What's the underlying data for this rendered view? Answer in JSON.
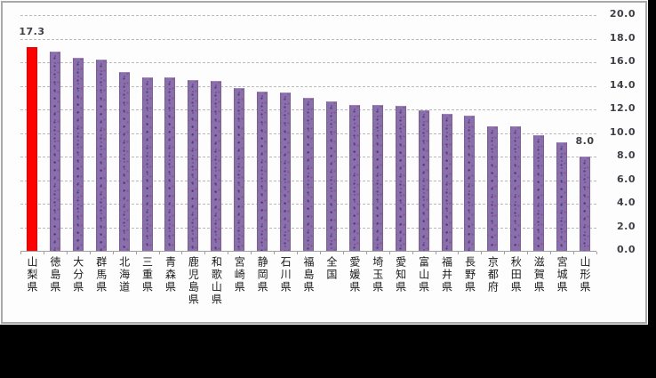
{
  "chart_data": {
    "type": "bar",
    "title": "",
    "xlabel": "",
    "ylabel": "",
    "categories": [
      "山梨県",
      "徳島県",
      "大分県",
      "群馬県",
      "北海道",
      "三重県",
      "青森県",
      "鹿児島県",
      "和歌山県",
      "宮崎県",
      "静岡県",
      "石川県",
      "福島県",
      "全国",
      "愛媛県",
      "埼玉県",
      "愛知県",
      "富山県",
      "福井県",
      "長野県",
      "京都府",
      "秋田県",
      "滋賀県",
      "宮城県",
      "山形県"
    ],
    "values": [
      17.3,
      16.9,
      16.4,
      16.2,
      15.2,
      14.7,
      14.7,
      14.5,
      14.4,
      13.8,
      13.5,
      13.4,
      13.0,
      12.7,
      12.4,
      12.4,
      12.3,
      11.9,
      11.6,
      11.5,
      10.6,
      10.6,
      9.8,
      9.2,
      8.0
    ],
    "highlight_index": 0,
    "data_labels": [
      {
        "index": 0,
        "text": "17.3"
      },
      {
        "index": 24,
        "text": "8.0"
      }
    ],
    "ylim": [
      0,
      20
    ],
    "ytick_step": 2,
    "ytick_labels": [
      "0.0",
      "2.0",
      "4.0",
      "6.0",
      "8.0",
      "10.0",
      "12.0",
      "14.0",
      "16.0",
      "18.0",
      "20.0"
    ],
    "yaxis_side": "right",
    "grid": "dashed-horizontal",
    "legend": "none"
  },
  "colors": {
    "background_outer": "#000000",
    "panel_background": "#fdfdfe",
    "panel_border": "#a9a9a9",
    "gridline": "#bababa",
    "axis_line": "#9f9f9f",
    "bar_color": "#8a6fad",
    "highlight_color": "#ff0000",
    "tick_label_color": "#3f4045",
    "category_label_color": "#1a1a1a"
  }
}
